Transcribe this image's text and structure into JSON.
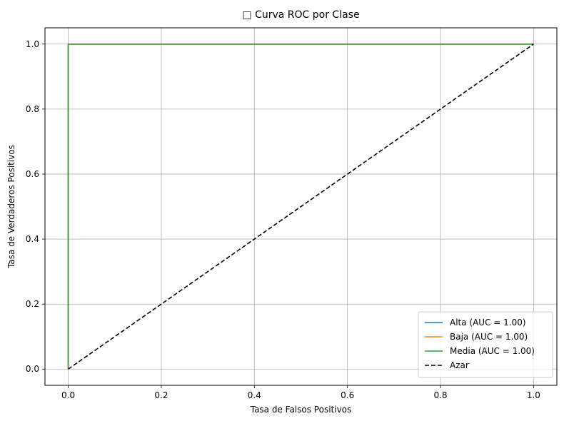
{
  "chart_data": {
    "type": "line",
    "title": "□ Curva ROC por Clase",
    "xlabel": "Tasa de Falsos Positivos",
    "ylabel": "Tasa de Verdaderos Positivos",
    "xlim": [
      -0.05,
      1.05
    ],
    "ylim": [
      -0.05,
      1.05
    ],
    "x_ticks": [
      "0.0",
      "0.2",
      "0.4",
      "0.6",
      "0.8",
      "1.0"
    ],
    "y_ticks": [
      "0.0",
      "0.2",
      "0.4",
      "0.6",
      "0.8",
      "1.0"
    ],
    "grid": true,
    "legend_position": "lower-right",
    "series": [
      {
        "name": "Alta (AUC = 1.00)",
        "color": "#1f77b4",
        "dash": "solid",
        "x": [
          0,
          0,
          1
        ],
        "y": [
          0,
          1,
          1
        ]
      },
      {
        "name": "Baja (AUC = 1.00)",
        "color": "#ff7f0e",
        "dash": "solid",
        "x": [
          0,
          0,
          1
        ],
        "y": [
          0,
          1,
          1
        ]
      },
      {
        "name": "Media (AUC = 1.00)",
        "color": "#2ca02c",
        "dash": "solid",
        "x": [
          0,
          0,
          1
        ],
        "y": [
          0,
          1,
          1
        ]
      },
      {
        "name": "Azar",
        "color": "#000000",
        "dash": "dashed",
        "x": [
          0,
          1
        ],
        "y": [
          0,
          1
        ]
      }
    ]
  }
}
